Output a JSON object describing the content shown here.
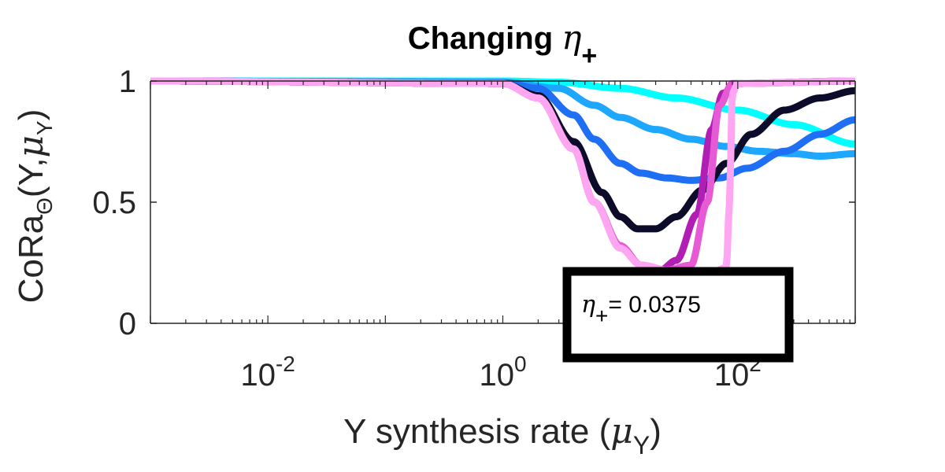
{
  "chart_data": {
    "type": "line",
    "title": {
      "prefix": "Changing ",
      "symbol": "η",
      "subscript": "+"
    },
    "xlabel": {
      "prefix": "Y synthesis rate (",
      "symbol": "μ",
      "subscript": "Y",
      "suffix": ")"
    },
    "ylabel": {
      "prefix": "CoRa",
      "subscript": "Θ",
      "middle": "(Y,",
      "symbol": "μ",
      "symbol_subscript": "Y",
      "suffix": ")"
    },
    "x_scale": "log",
    "xlim": [
      0.001,
      1000
    ],
    "ylim": [
      0,
      1
    ],
    "x_ticks": [
      {
        "base": "10",
        "exp": "-2",
        "value": 0.01
      },
      {
        "base": "10",
        "exp": "0",
        "value": 1
      },
      {
        "base": "10",
        "exp": "2",
        "value": 100
      }
    ],
    "y_ticks": [
      {
        "label": "0",
        "value": 0
      },
      {
        "label": "0.5",
        "value": 0.5
      },
      {
        "label": "1",
        "value": 1
      }
    ],
    "grid": false,
    "annotation": {
      "symbol": "η",
      "subscript": "+",
      "text": "= 0.0375"
    },
    "series": [
      {
        "color": "#00ffff",
        "points": [
          [
            0.001,
            1
          ],
          [
            1,
            1
          ],
          [
            3,
            0.995
          ],
          [
            10,
            0.97
          ],
          [
            30,
            0.93
          ],
          [
            100,
            0.88
          ],
          [
            300,
            0.82
          ],
          [
            1000,
            0.74
          ]
        ]
      },
      {
        "color": "#1ea7ff",
        "points": [
          [
            0.001,
            1
          ],
          [
            1,
            0.995
          ],
          [
            3,
            0.97
          ],
          [
            6,
            0.9
          ],
          [
            10,
            0.85
          ],
          [
            20,
            0.8
          ],
          [
            40,
            0.76
          ],
          [
            80,
            0.73
          ],
          [
            150,
            0.71
          ],
          [
            300,
            0.7
          ],
          [
            500,
            0.69
          ],
          [
            1000,
            0.7
          ]
        ]
      },
      {
        "color": "#1f6ff5",
        "points": [
          [
            0.001,
            1
          ],
          [
            1,
            0.993
          ],
          [
            2,
            0.97
          ],
          [
            4,
            0.86
          ],
          [
            6,
            0.76
          ],
          [
            10,
            0.66
          ],
          [
            15,
            0.62
          ],
          [
            25,
            0.6
          ],
          [
            40,
            0.59
          ],
          [
            70,
            0.6
          ],
          [
            120,
            0.64
          ],
          [
            250,
            0.71
          ],
          [
            500,
            0.78
          ],
          [
            1000,
            0.84
          ]
        ]
      },
      {
        "color": "#0c0c2a",
        "points": [
          [
            0.001,
            1
          ],
          [
            1,
            0.99
          ],
          [
            2,
            0.94
          ],
          [
            4,
            0.75
          ],
          [
            7,
            0.54
          ],
          [
            10,
            0.44
          ],
          [
            14,
            0.39
          ],
          [
            20,
            0.39
          ],
          [
            30,
            0.44
          ],
          [
            50,
            0.55
          ],
          [
            80,
            0.66
          ],
          [
            130,
            0.78
          ],
          [
            250,
            0.88
          ],
          [
            500,
            0.93
          ],
          [
            1000,
            0.96
          ]
        ]
      },
      {
        "color": "#b01eb4",
        "points": [
          [
            0.001,
            1
          ],
          [
            1,
            0.99
          ],
          [
            2,
            0.93
          ],
          [
            4,
            0.72
          ],
          [
            6,
            0.5
          ],
          [
            10,
            0.32
          ],
          [
            15,
            0.24
          ],
          [
            22,
            0.22
          ],
          [
            30,
            0.26
          ],
          [
            45,
            0.45
          ],
          [
            60,
            0.8
          ],
          [
            75,
            0.95
          ],
          [
            100,
            0.99
          ],
          [
            1000,
            1
          ]
        ]
      },
      {
        "color": "#e65ad6",
        "points": [
          [
            0.001,
            1
          ],
          [
            1,
            0.99
          ],
          [
            2,
            0.93
          ],
          [
            4,
            0.72
          ],
          [
            6,
            0.5
          ],
          [
            10,
            0.32
          ],
          [
            15,
            0.24
          ],
          [
            25,
            0.22
          ],
          [
            40,
            0.24
          ],
          [
            55,
            0.5
          ],
          [
            70,
            0.9
          ],
          [
            90,
            0.99
          ],
          [
            1000,
            1
          ]
        ]
      },
      {
        "color": "#ffa6f2",
        "points": [
          [
            0.001,
            1
          ],
          [
            1,
            0.99
          ],
          [
            2,
            0.93
          ],
          [
            4,
            0.72
          ],
          [
            6,
            0.5
          ],
          [
            10,
            0.31
          ],
          [
            15,
            0.24
          ],
          [
            30,
            0.21
          ],
          [
            60,
            0.21
          ],
          [
            80,
            0.23
          ],
          [
            85,
            0.5
          ],
          [
            90,
            0.95
          ],
          [
            100,
            0.99
          ],
          [
            1000,
            1
          ]
        ]
      }
    ]
  }
}
